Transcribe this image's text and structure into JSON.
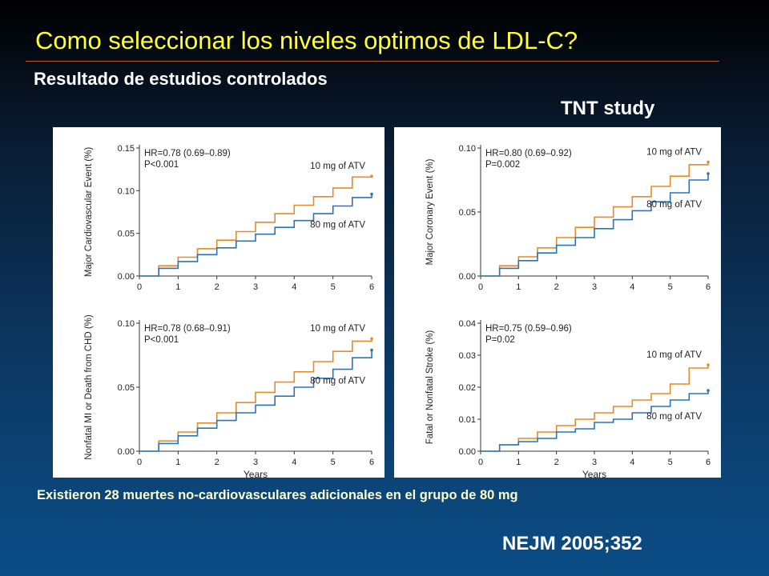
{
  "slide": {
    "title": "Como seleccionar los niveles optimos de LDL-C?",
    "subtitle": "Resultado de estudios controlados",
    "study_label": "TNT study",
    "footnote": "Existieron 28 muertes no-cardiovasculares adicionales en el grupo de 80 mg",
    "citation": "NEJM 2005;352",
    "colors": {
      "title": "#ffff33",
      "footnote": "#ffffcc",
      "series_10mg": "#e8892a",
      "series_80mg": "#2a73b8"
    }
  },
  "chart_data": [
    {
      "type": "line",
      "ylabel": "Major Cardiovascular Event (%)",
      "xlabel": "",
      "xlim": [
        0,
        6
      ],
      "ylim": [
        0,
        0.15
      ],
      "xticks": [
        "0",
        "1",
        "2",
        "3",
        "4",
        "5",
        "6"
      ],
      "yticks": [
        "0.00",
        "0.05",
        "0.10",
        "0.15"
      ],
      "annotation": [
        "HR=0.78 (0.69–0.89)",
        "P<0.001"
      ],
      "series": [
        {
          "name": "10 mg of ATV",
          "color": "#e8892a",
          "x": [
            0,
            0.5,
            1,
            1.5,
            2,
            2.5,
            3,
            3.5,
            4,
            4.5,
            5,
            5.5,
            6
          ],
          "y": [
            0,
            0.012,
            0.022,
            0.032,
            0.042,
            0.052,
            0.063,
            0.073,
            0.083,
            0.093,
            0.103,
            0.116,
            0.117
          ]
        },
        {
          "name": "80 mg of ATV",
          "color": "#2a73b8",
          "x": [
            0,
            0.5,
            1,
            1.5,
            2,
            2.5,
            3,
            3.5,
            4,
            4.5,
            5,
            5.5,
            6
          ],
          "y": [
            0,
            0.009,
            0.017,
            0.025,
            0.033,
            0.041,
            0.049,
            0.057,
            0.065,
            0.073,
            0.082,
            0.092,
            0.096
          ]
        }
      ],
      "series_labels": [
        "10 mg of ATV",
        "80 mg of ATV"
      ]
    },
    {
      "type": "line",
      "ylabel": "Major Coronary Event (%)",
      "xlabel": "",
      "xlim": [
        0,
        6
      ],
      "ylim": [
        0,
        0.1
      ],
      "xticks": [
        "0",
        "1",
        "2",
        "3",
        "4",
        "5",
        "6"
      ],
      "yticks": [
        "0.00",
        "0.05",
        "0.10"
      ],
      "annotation": [
        "HR=0.80 (0.69–0.92)",
        "P=0.002"
      ],
      "series": [
        {
          "name": "10 mg of ATV",
          "color": "#e8892a",
          "x": [
            0,
            0.5,
            1,
            1.5,
            2,
            2.5,
            3,
            3.5,
            4,
            4.5,
            5,
            5.5,
            6
          ],
          "y": [
            0,
            0.008,
            0.015,
            0.022,
            0.03,
            0.038,
            0.046,
            0.054,
            0.062,
            0.07,
            0.078,
            0.087,
            0.089
          ]
        },
        {
          "name": "80 mg of ATV",
          "color": "#2a73b8",
          "x": [
            0,
            0.5,
            1,
            1.5,
            2,
            2.5,
            3,
            3.5,
            4,
            4.5,
            5,
            5.5,
            6
          ],
          "y": [
            0,
            0.006,
            0.012,
            0.018,
            0.024,
            0.03,
            0.037,
            0.044,
            0.051,
            0.058,
            0.065,
            0.075,
            0.08
          ]
        }
      ],
      "series_labels": [
        "10 mg of ATV",
        "80 mg of ATV"
      ]
    },
    {
      "type": "line",
      "ylabel": "Nonfatal MI or Death from CHD (%)",
      "xlabel": "Years",
      "xlim": [
        0,
        6
      ],
      "ylim": [
        0,
        0.1
      ],
      "xticks": [
        "0",
        "1",
        "2",
        "3",
        "4",
        "5",
        "6"
      ],
      "yticks": [
        "0.00",
        "0.05",
        "0.10"
      ],
      "annotation": [
        "HR=0.78 (0.68–0.91)",
        "P<0.001"
      ],
      "series": [
        {
          "name": "10 mg of ATV",
          "color": "#e8892a",
          "x": [
            0,
            0.5,
            1,
            1.5,
            2,
            2.5,
            3,
            3.5,
            4,
            4.5,
            5,
            5.5,
            6
          ],
          "y": [
            0,
            0.008,
            0.015,
            0.022,
            0.03,
            0.038,
            0.046,
            0.054,
            0.062,
            0.07,
            0.078,
            0.086,
            0.088
          ]
        },
        {
          "name": "80 mg of ATV",
          "color": "#2a73b8",
          "x": [
            0,
            0.5,
            1,
            1.5,
            2,
            2.5,
            3,
            3.5,
            4,
            4.5,
            5,
            5.5,
            6
          ],
          "y": [
            0,
            0.006,
            0.012,
            0.018,
            0.024,
            0.03,
            0.036,
            0.043,
            0.05,
            0.057,
            0.064,
            0.073,
            0.079
          ]
        }
      ],
      "series_labels": [
        "10 mg of ATV",
        "80 mg of ATV"
      ]
    },
    {
      "type": "line",
      "ylabel": "Fatal or Nonfatal Stroke (%)",
      "xlabel": "Years",
      "xlim": [
        0,
        6
      ],
      "ylim": [
        0,
        0.04
      ],
      "xticks": [
        "0",
        "1",
        "2",
        "3",
        "4",
        "5",
        "6"
      ],
      "yticks": [
        "0.00",
        "0.01",
        "0.02",
        "0.03",
        "0.04"
      ],
      "annotation": [
        "HR=0.75 (0.59–0.96)",
        "P=0.02"
      ],
      "series": [
        {
          "name": "10 mg of ATV",
          "color": "#e8892a",
          "x": [
            0,
            0.5,
            1,
            1.5,
            2,
            2.5,
            3,
            3.5,
            4,
            4.5,
            5,
            5.5,
            6
          ],
          "y": [
            0,
            0.002,
            0.004,
            0.006,
            0.008,
            0.01,
            0.012,
            0.014,
            0.016,
            0.018,
            0.021,
            0.026,
            0.027
          ]
        },
        {
          "name": "80 mg of ATV",
          "color": "#2a73b8",
          "x": [
            0,
            0.5,
            1,
            1.5,
            2,
            2.5,
            3,
            3.5,
            4,
            4.5,
            5,
            5.5,
            6
          ],
          "y": [
            0,
            0.002,
            0.003,
            0.004,
            0.006,
            0.007,
            0.009,
            0.01,
            0.012,
            0.014,
            0.016,
            0.018,
            0.019
          ]
        }
      ],
      "series_labels": [
        "10 mg of ATV",
        "80 mg of ATV"
      ]
    }
  ]
}
